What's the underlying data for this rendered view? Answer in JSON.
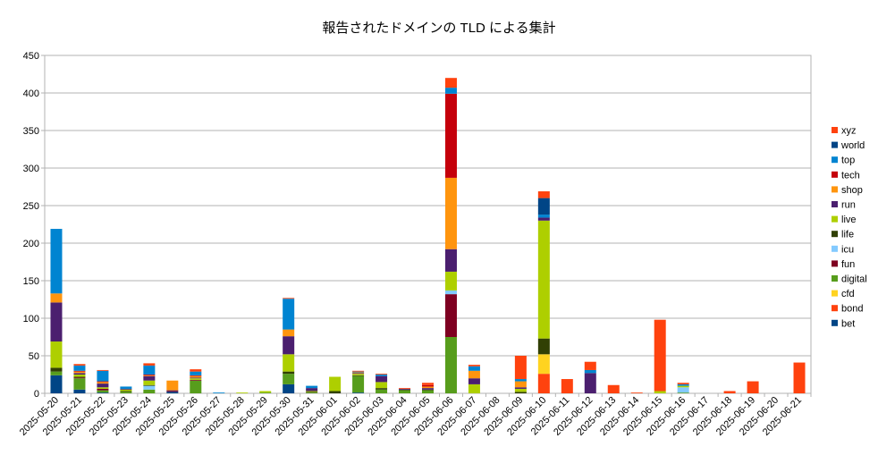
{
  "chart_data": {
    "type": "bar",
    "stacked": true,
    "title": "報告されたドメインの TLD による集計",
    "xlabel": "",
    "ylabel": "",
    "ylim": [
      0,
      450
    ],
    "yticks": [
      0,
      50,
      100,
      150,
      200,
      250,
      300,
      350,
      400,
      450
    ],
    "grid": "horizontal",
    "legend_position": "right",
    "categories": [
      "2025-05-20",
      "2025-05-21",
      "2025-05-22",
      "2025-05-23",
      "2025-05-24",
      "2025-05-25",
      "2025-05-26",
      "2025-05-27",
      "2025-05-28",
      "2025-05-29",
      "2025-05-30",
      "2025-05-31",
      "2025-06-01",
      "2025-06-02",
      "2025-06-03",
      "2025-06-04",
      "2025-06-05",
      "2025-06-06",
      "2025-06-07",
      "2025-06-08",
      "2025-06-09",
      "2025-06-10",
      "2025-06-11",
      "2025-06-12",
      "2025-06-13",
      "2025-06-14",
      "2025-06-15",
      "2025-06-16",
      "2025-06-17",
      "2025-06-18",
      "2025-06-19",
      "2025-06-20",
      "2025-06-21"
    ],
    "series": [
      {
        "name": "bet",
        "color": "#004586",
        "values": [
          24,
          5,
          1,
          0,
          0,
          2,
          0,
          0,
          0,
          0,
          12,
          0,
          0,
          1,
          0,
          0,
          0,
          0,
          0,
          0,
          0,
          0,
          0,
          0,
          0,
          0,
          0,
          0,
          0,
          0,
          0,
          0,
          0
        ]
      },
      {
        "name": "bond",
        "color": "#ff420e",
        "values": [
          0,
          0,
          0,
          0,
          0,
          0,
          0,
          0,
          0,
          0,
          0,
          0,
          0,
          0,
          0,
          0,
          0,
          0,
          0,
          0,
          0,
          26,
          19,
          0,
          11,
          1,
          0,
          0,
          0,
          3,
          16,
          0,
          41
        ]
      },
      {
        "name": "cfd",
        "color": "#ffd320",
        "values": [
          0,
          0,
          0,
          0,
          0,
          0,
          0,
          0,
          0,
          0,
          0,
          0,
          0,
          0,
          0,
          0,
          0,
          0,
          0,
          0,
          0,
          26,
          0,
          0,
          0,
          0,
          0,
          0,
          0,
          0,
          0,
          0,
          0
        ]
      },
      {
        "name": "digital",
        "color": "#579d1c",
        "values": [
          5,
          15,
          3,
          2,
          5,
          0,
          17,
          0,
          0,
          1,
          14,
          1,
          0,
          22,
          5,
          4,
          4,
          75,
          0,
          0,
          0,
          0,
          0,
          0,
          0,
          0,
          0,
          1,
          0,
          0,
          0,
          0,
          0
        ]
      },
      {
        "name": "fun",
        "color": "#7e0021",
        "values": [
          0,
          1,
          2,
          0,
          0,
          1,
          1,
          0,
          0,
          0,
          0,
          0,
          0,
          0,
          0,
          0,
          0,
          57,
          0,
          0,
          0,
          0,
          0,
          0,
          0,
          0,
          0,
          0,
          0,
          0,
          0,
          0,
          0
        ]
      },
      {
        "name": "icu",
        "color": "#83caff",
        "values": [
          0,
          0,
          0,
          0,
          5,
          0,
          0,
          0,
          0,
          0,
          0,
          0,
          0,
          0,
          0,
          0,
          0,
          5,
          0,
          0,
          0,
          0,
          0,
          0,
          0,
          0,
          0,
          7,
          0,
          0,
          0,
          0,
          0
        ]
      },
      {
        "name": "life",
        "color": "#314004",
        "values": [
          5,
          1,
          0,
          1,
          1,
          0,
          0,
          0,
          0,
          0,
          3,
          1,
          3,
          1,
          2,
          1,
          1,
          0,
          0,
          0,
          2,
          21,
          0,
          0,
          0,
          0,
          0,
          0,
          0,
          0,
          0,
          0,
          0
        ]
      },
      {
        "name": "live",
        "color": "#aecf00",
        "values": [
          35,
          3,
          2,
          2,
          6,
          0,
          2,
          0,
          1,
          2,
          23,
          1,
          19,
          2,
          8,
          0,
          0,
          25,
          12,
          0,
          4,
          157,
          0,
          0,
          0,
          0,
          3,
          2,
          0,
          0,
          0,
          0,
          0
        ]
      },
      {
        "name": "run",
        "color": "#4b1f6f",
        "values": [
          52,
          2,
          5,
          1,
          6,
          1,
          1,
          0,
          0,
          0,
          24,
          4,
          0,
          1,
          8,
          1,
          2,
          30,
          8,
          0,
          2,
          4,
          0,
          27,
          0,
          0,
          0,
          0,
          0,
          0,
          0,
          0,
          0
        ]
      },
      {
        "name": "shop",
        "color": "#ff950e",
        "values": [
          12,
          2,
          2,
          0,
          1,
          13,
          2,
          0,
          0,
          0,
          9,
          0,
          0,
          1,
          0,
          0,
          2,
          95,
          10,
          0,
          8,
          0,
          0,
          0,
          0,
          0,
          0,
          0,
          0,
          0,
          0,
          0,
          0
        ]
      },
      {
        "name": "tech",
        "color": "#c5000b",
        "values": [
          0,
          1,
          1,
          0,
          1,
          0,
          1,
          0,
          0,
          0,
          0,
          0,
          0,
          0,
          0,
          0,
          2,
          112,
          0,
          0,
          0,
          0,
          0,
          0,
          0,
          0,
          0,
          0,
          0,
          0,
          0,
          0,
          0
        ]
      },
      {
        "name": "top",
        "color": "#0084d1",
        "values": [
          86,
          7,
          14,
          3,
          12,
          0,
          5,
          1,
          0,
          0,
          41,
          3,
          0,
          1,
          2,
          0,
          0,
          8,
          6,
          0,
          3,
          4,
          0,
          4,
          0,
          0,
          0,
          2,
          0,
          0,
          0,
          0,
          0
        ]
      },
      {
        "name": "world",
        "color": "#004586",
        "values": [
          0,
          0,
          0,
          0,
          0,
          0,
          0,
          0,
          0,
          0,
          0,
          0,
          0,
          0,
          0,
          0,
          0,
          0,
          0,
          0,
          0,
          22,
          0,
          0,
          0,
          0,
          0,
          0,
          0,
          0,
          0,
          0,
          0
        ]
      },
      {
        "name": "xyz",
        "color": "#ff420e",
        "values": [
          0,
          2,
          1,
          0,
          3,
          0,
          3,
          0,
          0,
          0,
          1,
          0,
          0,
          1,
          1,
          1,
          3,
          13,
          2,
          0,
          31,
          9,
          0,
          11,
          0,
          0,
          95,
          2,
          0,
          0,
          0,
          0,
          0
        ]
      }
    ]
  }
}
